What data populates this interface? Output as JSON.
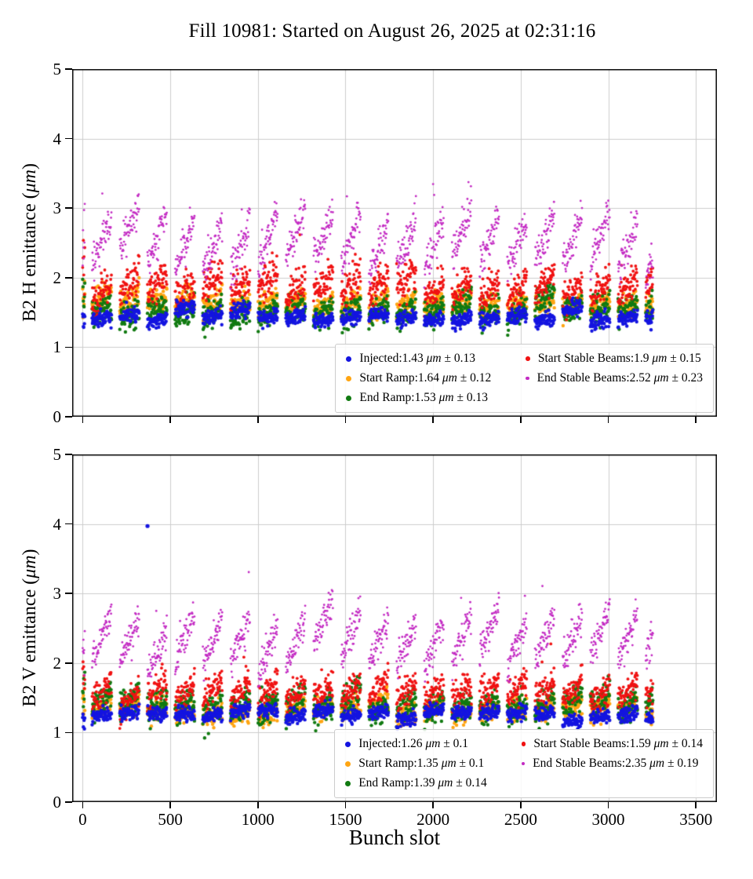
{
  "title": "Fill 10981: Started on August 26, 2025 at 02:31:16",
  "xlabel": "Bunch slot",
  "unit": "μm",
  "pm": "±",
  "grid_color": "#cccccc",
  "axis_color": "#000000",
  "trains": {
    "start": 0,
    "first_len": 14,
    "first_gap": 40,
    "train_len": 112,
    "gap": 46,
    "last_slot": 3255,
    "slot_step": 2
  },
  "chart_data": [
    {
      "type": "scatter",
      "name": "B2 H emittance",
      "ylabel_prefix": "B2 H emittance (",
      "ylabel_unit": "μm",
      "ylabel_suffix": ")",
      "xlim": [
        -60,
        3620
      ],
      "ylim": [
        0,
        5
      ],
      "xticks": [
        0,
        500,
        1000,
        1500,
        2000,
        2500,
        3000,
        3500
      ],
      "yticks": [
        0,
        1,
        2,
        3,
        4,
        5
      ],
      "show_x_tick_labels": false,
      "grid": true,
      "legend_position": "lower right",
      "seed": 42,
      "series": [
        {
          "name": "Injected",
          "mean": "1.43",
          "std": "0.13",
          "color": "#1414e0",
          "marker_r": 2.2,
          "legend_r": 3.5,
          "ramp": 0.05,
          "noise": 0.055
        },
        {
          "name": "Start Ramp",
          "mean": "1.64",
          "std": "0.12",
          "color": "#ffa512",
          "marker_r": 2.2,
          "legend_r": 3.5,
          "ramp": 0.18,
          "noise": 0.09
        },
        {
          "name": "End Ramp",
          "mean": "1.53",
          "std": "0.13",
          "color": "#117a11",
          "marker_r": 2.2,
          "legend_r": 3.5,
          "ramp": 0.16,
          "noise": 0.1
        },
        {
          "name": "Start Stable Beams",
          "mean": "1.9",
          "std": "0.15",
          "color": "#f01212",
          "marker_r": 1.9,
          "legend_r": 2.8,
          "ramp": 0.28,
          "noise": 0.12
        },
        {
          "name": "End Stable Beams",
          "mean": "2.52",
          "std": "0.23",
          "color": "#c32bc3",
          "marker_r": 1.4,
          "legend_r": 2.2,
          "ramp": 0.75,
          "noise": 0.13
        }
      ],
      "outliers": []
    },
    {
      "type": "scatter",
      "name": "B2 V emittance",
      "ylabel_prefix": "B2 V emittance (",
      "ylabel_unit": "μm",
      "ylabel_suffix": ")",
      "xlim": [
        -60,
        3620
      ],
      "ylim": [
        0,
        5
      ],
      "xticks": [
        0,
        500,
        1000,
        1500,
        2000,
        2500,
        3000,
        3500
      ],
      "yticks": [
        0,
        1,
        2,
        3,
        4,
        5
      ],
      "show_x_tick_labels": true,
      "grid": true,
      "legend_position": "lower right",
      "seed": 1337,
      "series": [
        {
          "name": "Injected",
          "mean": "1.26",
          "std": "0.1",
          "color": "#1414e0",
          "marker_r": 2.2,
          "legend_r": 3.5,
          "ramp": 0.04,
          "noise": 0.05
        },
        {
          "name": "Start Ramp",
          "mean": "1.35",
          "std": "0.1",
          "color": "#ffa512",
          "marker_r": 2.2,
          "legend_r": 3.5,
          "ramp": 0.12,
          "noise": 0.08
        },
        {
          "name": "End Ramp",
          "mean": "1.39",
          "std": "0.14",
          "color": "#117a11",
          "marker_r": 2.2,
          "legend_r": 3.5,
          "ramp": 0.2,
          "noise": 0.11
        },
        {
          "name": "Start Stable Beams",
          "mean": "1.59",
          "std": "0.14",
          "color": "#f01212",
          "marker_r": 1.9,
          "legend_r": 2.8,
          "ramp": 0.25,
          "noise": 0.11
        },
        {
          "name": "End Stable Beams",
          "mean": "2.35",
          "std": "0.19",
          "color": "#c32bc3",
          "marker_r": 1.4,
          "legend_r": 2.2,
          "ramp": 0.7,
          "noise": 0.12
        }
      ],
      "outliers": [
        {
          "series": "Injected",
          "x": 370,
          "y": 3.97
        }
      ]
    }
  ]
}
